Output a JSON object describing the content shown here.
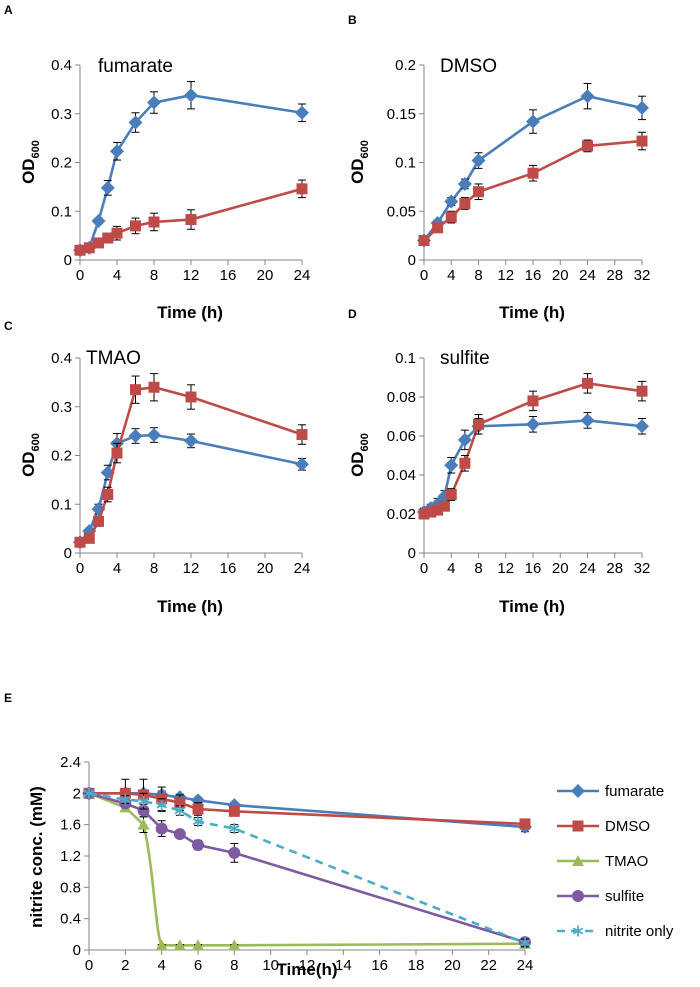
{
  "chart_data": [
    {
      "panel": "A",
      "type": "line",
      "title": "fumarate",
      "xlabel": "Time (h)",
      "ylabel": "OD",
      "ylabel_sub": "600",
      "xticks": [
        0,
        4,
        8,
        12,
        16,
        20,
        24
      ],
      "yticks": [
        0,
        0.1,
        0.2,
        0.3,
        0.4
      ],
      "ylim": [
        0,
        0.4
      ],
      "xlim": [
        0,
        24
      ],
      "series": [
        {
          "name": "blue",
          "color": "#4a7ebb",
          "marker": "diamond",
          "x": [
            0,
            1,
            2,
            3,
            4,
            6,
            8,
            12,
            24
          ],
          "y": [
            0.02,
            0.025,
            0.08,
            0.148,
            0.223,
            0.282,
            0.323,
            0.338,
            0.302
          ],
          "err": [
            0.004,
            0.004,
            0.006,
            0.015,
            0.018,
            0.02,
            0.022,
            0.028,
            0.018
          ]
        },
        {
          "name": "red",
          "color": "#be4b48",
          "marker": "square",
          "x": [
            0,
            1,
            2,
            3,
            4,
            6,
            8,
            12,
            24
          ],
          "y": [
            0.02,
            0.025,
            0.035,
            0.045,
            0.055,
            0.07,
            0.078,
            0.083,
            0.146
          ],
          "err": [
            0.004,
            0.005,
            0.008,
            0.01,
            0.014,
            0.016,
            0.018,
            0.02,
            0.018
          ]
        }
      ]
    },
    {
      "panel": "B",
      "type": "line",
      "title": "DMSO",
      "xlabel": "Time (h)",
      "ylabel": "OD",
      "ylabel_sub": "600",
      "xticks": [
        0,
        4,
        8,
        12,
        16,
        20,
        24,
        28,
        32
      ],
      "yticks": [
        0,
        0.05,
        0.1,
        0.15,
        0.2
      ],
      "ylim": [
        0,
        0.2
      ],
      "xlim": [
        0,
        32
      ],
      "series": [
        {
          "name": "blue",
          "color": "#4a7ebb",
          "marker": "diamond",
          "x": [
            0,
            2,
            4,
            6,
            8,
            16,
            24,
            32
          ],
          "y": [
            0.02,
            0.038,
            0.06,
            0.078,
            0.102,
            0.142,
            0.168,
            0.156
          ],
          "err": [
            0.002,
            0.003,
            0.004,
            0.005,
            0.008,
            0.012,
            0.013,
            0.012
          ]
        },
        {
          "name": "red",
          "color": "#be4b48",
          "marker": "square",
          "x": [
            0,
            2,
            4,
            6,
            8,
            16,
            24,
            32
          ],
          "y": [
            0.02,
            0.033,
            0.044,
            0.058,
            0.07,
            0.089,
            0.117,
            0.122
          ],
          "err": [
            0.002,
            0.004,
            0.006,
            0.006,
            0.008,
            0.008,
            0.006,
            0.009
          ]
        }
      ]
    },
    {
      "panel": "C",
      "type": "line",
      "title": "TMAO",
      "xlabel": "Time (h)",
      "ylabel": "OD",
      "ylabel_sub": "600",
      "xticks": [
        0,
        4,
        8,
        12,
        16,
        20,
        24
      ],
      "yticks": [
        0,
        0.1,
        0.2,
        0.3,
        0.4
      ],
      "ylim": [
        0,
        0.4
      ],
      "xlim": [
        0,
        24
      ],
      "series": [
        {
          "name": "blue",
          "color": "#4a7ebb",
          "marker": "diamond",
          "x": [
            0,
            1,
            2,
            3,
            4,
            6,
            8,
            12,
            24
          ],
          "y": [
            0.022,
            0.045,
            0.09,
            0.165,
            0.225,
            0.24,
            0.242,
            0.23,
            0.182
          ],
          "err": [
            0.004,
            0.006,
            0.01,
            0.015,
            0.02,
            0.015,
            0.015,
            0.014,
            0.012
          ]
        },
        {
          "name": "red",
          "color": "#be4b48",
          "marker": "square",
          "x": [
            0,
            1,
            2,
            3,
            4,
            6,
            8,
            12,
            24
          ],
          "y": [
            0.022,
            0.03,
            0.065,
            0.12,
            0.205,
            0.335,
            0.34,
            0.32,
            0.243
          ],
          "err": [
            0.004,
            0.006,
            0.01,
            0.015,
            0.02,
            0.028,
            0.028,
            0.025,
            0.02
          ]
        }
      ]
    },
    {
      "panel": "D",
      "type": "line",
      "title": "sulfite",
      "xlabel": "Time (h)",
      "ylabel": "OD",
      "ylabel_sub": "600",
      "xticks": [
        0,
        4,
        8,
        12,
        16,
        20,
        24,
        28,
        32
      ],
      "yticks": [
        0,
        0.02,
        0.04,
        0.06,
        0.08,
        0.1
      ],
      "ylim": [
        0,
        0.1
      ],
      "xlim": [
        0,
        32
      ],
      "series": [
        {
          "name": "blue",
          "color": "#4a7ebb",
          "marker": "diamond",
          "x": [
            0,
            1,
            2,
            3,
            4,
            6,
            8,
            16,
            24,
            32
          ],
          "y": [
            0.021,
            0.023,
            0.025,
            0.029,
            0.045,
            0.058,
            0.065,
            0.066,
            0.068,
            0.065
          ],
          "err": [
            0.002,
            0.002,
            0.003,
            0.003,
            0.004,
            0.005,
            0.004,
            0.004,
            0.004,
            0.004
          ]
        },
        {
          "name": "red",
          "color": "#be4b48",
          "marker": "square",
          "x": [
            0,
            1,
            2,
            3,
            4,
            6,
            8,
            16,
            24,
            32
          ],
          "y": [
            0.02,
            0.021,
            0.022,
            0.024,
            0.03,
            0.046,
            0.066,
            0.078,
            0.087,
            0.083
          ],
          "err": [
            0.002,
            0.002,
            0.002,
            0.002,
            0.003,
            0.004,
            0.005,
            0.005,
            0.005,
            0.005
          ]
        }
      ]
    },
    {
      "panel": "E",
      "type": "line",
      "xlabel": "Time(h)",
      "ylabel": "nitrite conc. (mM)",
      "xticks": [
        0,
        2,
        4,
        6,
        8,
        10,
        12,
        14,
        16,
        18,
        20,
        22,
        24
      ],
      "yticks": [
        0,
        0.4,
        0.8,
        1.2,
        1.6,
        2,
        2.4
      ],
      "ylim": [
        0,
        2.4
      ],
      "xlim": [
        0,
        24
      ],
      "series": [
        {
          "name": "fumarate",
          "color": "#4a7ebb",
          "marker": "diamond",
          "dash": false,
          "x": [
            0,
            2,
            3,
            4,
            5,
            6,
            8,
            24
          ],
          "y": [
            2.0,
            2.0,
            2.0,
            1.98,
            1.95,
            1.91,
            1.85,
            1.57
          ],
          "err": [
            0.02,
            0.05,
            0.04,
            0.05,
            0.04,
            0.04,
            0.03,
            0.06
          ]
        },
        {
          "name": "DMSO",
          "color": "#be4b48",
          "marker": "square",
          "dash": false,
          "x": [
            0,
            2,
            3,
            4,
            5,
            6,
            8,
            24
          ],
          "y": [
            2.0,
            2.0,
            1.98,
            1.93,
            1.88,
            1.8,
            1.77,
            1.61
          ],
          "err": [
            0.02,
            0.18,
            0.2,
            0.15,
            0.1,
            0.08,
            0.06,
            0.05
          ]
        },
        {
          "name": "TMAO",
          "color": "#9bbb59",
          "marker": "triangle",
          "dash": false,
          "curve": true,
          "x": [
            0,
            2,
            3,
            4,
            5,
            6,
            8,
            24
          ],
          "y": [
            2.0,
            1.82,
            1.6,
            0.06,
            0.06,
            0.06,
            0.06,
            0.08
          ],
          "err": [
            0.02,
            0.05,
            0.1,
            0.01,
            0.01,
            0.01,
            0.01,
            0.01
          ]
        },
        {
          "name": "sulfite",
          "color": "#7e5aa2",
          "marker": "circle",
          "dash": false,
          "x": [
            0,
            2,
            3,
            4,
            5,
            6,
            8,
            24
          ],
          "y": [
            2.0,
            1.87,
            1.78,
            1.55,
            1.48,
            1.34,
            1.24,
            0.1
          ],
          "err": [
            0.02,
            0.05,
            0.08,
            0.1,
            0.05,
            0.06,
            0.12,
            0.05
          ]
        },
        {
          "name": "nitrite only",
          "color": "#4bacc6",
          "marker": "star",
          "dash": true,
          "x": [
            0,
            2,
            3,
            4,
            5,
            6,
            8,
            24
          ],
          "y": [
            2.0,
            1.92,
            1.9,
            1.85,
            1.78,
            1.64,
            1.55,
            0.09
          ],
          "err": [
            0.02,
            0.05,
            0.1,
            0.08,
            0.06,
            0.05,
            0.05,
            0.05
          ]
        }
      ]
    }
  ]
}
